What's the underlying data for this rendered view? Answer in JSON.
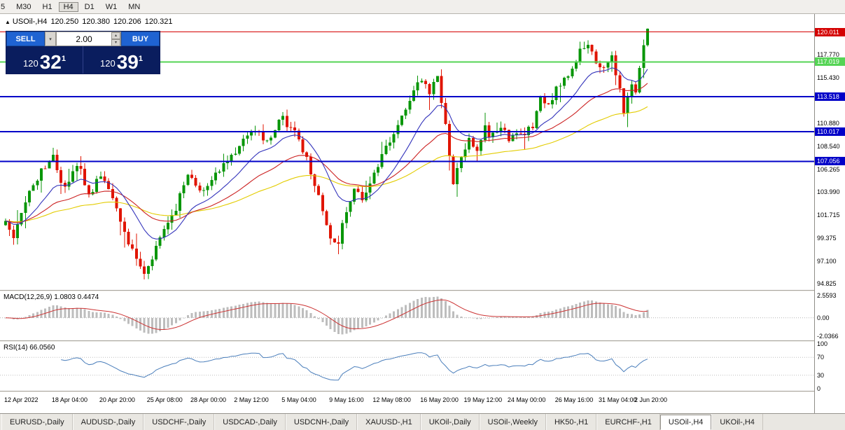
{
  "icons": {
    "one_click_toggle": "▲",
    "dropdown": "▾",
    "step_up": "▴",
    "step_down": "▾"
  },
  "toolbar": {
    "timeframes": [
      {
        "label": "5",
        "active": false
      },
      {
        "label": "M30",
        "active": false
      },
      {
        "label": "H1",
        "active": false
      },
      {
        "label": "H4",
        "active": true
      },
      {
        "label": "D1",
        "active": false
      },
      {
        "label": "W1",
        "active": false
      },
      {
        "label": "MN",
        "active": false
      }
    ]
  },
  "chart": {
    "symbol": "USOil-,H4",
    "open": "120.250",
    "high": "120.380",
    "low": "120.206",
    "close": "120.321"
  },
  "trade_panel": {
    "sell_label": "SELL",
    "buy_label": "BUY",
    "amount": "2.00",
    "sell_price": {
      "base": "120",
      "pips": "32",
      "sup": "1"
    },
    "buy_price": {
      "base": "120",
      "pips": "39",
      "sup": "1"
    }
  },
  "price_axis": {
    "ticks": [
      "117.770",
      "115.430",
      "113.513",
      "110.880",
      "108.540",
      "106.265",
      "103.990",
      "101.715",
      "99.375",
      "97.100",
      "94.825"
    ]
  },
  "hlines": [
    {
      "value": 120.011,
      "label": "120.011",
      "color": "#d40000",
      "badge_bg": "#d40000",
      "badge_fg": "#ffffff",
      "width": 1
    },
    {
      "value": 117.019,
      "label": "117.019",
      "color": "#55d455",
      "badge_bg": "#55d455",
      "badge_fg": "#ffffff",
      "width": 2
    },
    {
      "value": 113.518,
      "label": "113.518",
      "color": "#0000c8",
      "badge_bg": "#0000c8",
      "badge_fg": "#ffffff",
      "width": 2
    },
    {
      "value": 110.017,
      "label": "110.017",
      "color": "#0000c8",
      "badge_bg": "#0000c8",
      "badge_fg": "#ffffff",
      "width": 2
    },
    {
      "value": 107.056,
      "label": "107.056",
      "color": "#0000c8",
      "badge_bg": "#0000c8",
      "badge_fg": "#ffffff",
      "width": 2
    }
  ],
  "macd": {
    "label": "MACD(12,26,9) 1.0803 0.4474",
    "ticks": [
      {
        "v": 2.5593,
        "t": "2.5593"
      },
      {
        "v": 0,
        "t": "0.00"
      },
      {
        "v": -2.0366,
        "t": "-2.0366"
      }
    ]
  },
  "rsi": {
    "label": "RSI(14) 66.0560",
    "ticks": [
      {
        "v": 100,
        "t": "100"
      },
      {
        "v": 70,
        "t": "70"
      },
      {
        "v": 30,
        "t": "30"
      },
      {
        "v": 0,
        "t": "0"
      }
    ]
  },
  "x_axis": {
    "labels": [
      {
        "i": 0,
        "t": "12 Apr 2022"
      },
      {
        "i": 12,
        "t": "18 Apr 04:00"
      },
      {
        "i": 24,
        "t": "20 Apr 20:00"
      },
      {
        "i": 36,
        "t": "25 Apr 08:00"
      },
      {
        "i": 47,
        "t": "28 Apr 00:00"
      },
      {
        "i": 58,
        "t": "2 May 12:00"
      },
      {
        "i": 70,
        "t": "5 May 04:00"
      },
      {
        "i": 82,
        "t": "9 May 16:00"
      },
      {
        "i": 93,
        "t": "12 May 08:00"
      },
      {
        "i": 105,
        "t": "16 May 20:00"
      },
      {
        "i": 116,
        "t": "19 May 12:00"
      },
      {
        "i": 127,
        "t": "24 May 00:00"
      },
      {
        "i": 139,
        "t": "26 May 16:00"
      },
      {
        "i": 150,
        "t": "31 May 04:00"
      },
      {
        "i": 159,
        "t": "2 Jun 20:00"
      }
    ]
  },
  "bottom_tabs": [
    {
      "label": "EURUSD-,Daily",
      "active": false
    },
    {
      "label": "AUDUSD-,Daily",
      "active": false
    },
    {
      "label": "USDCHF-,Daily",
      "active": false
    },
    {
      "label": "USDCAD-,Daily",
      "active": false
    },
    {
      "label": "USDCNH-,Daily",
      "active": false
    },
    {
      "label": "XAUUSD-,H1",
      "active": false
    },
    {
      "label": "UKOil-,Daily",
      "active": false
    },
    {
      "label": "USOil-,Weekly",
      "active": false
    },
    {
      "label": "HK50-,H1",
      "active": false
    },
    {
      "label": "EURCHF-,H1",
      "active": false
    },
    {
      "label": "USOil-,H4",
      "active": true
    },
    {
      "label": "UKOil-,H4",
      "active": false
    }
  ],
  "chart_data": {
    "type": "candlestick",
    "symbol": "USOil-",
    "timeframe": "H4",
    "current_ohlc": {
      "open": 120.25,
      "high": 120.38,
      "low": 120.206,
      "close": 120.321
    },
    "n_candles": 163,
    "price_range": [
      94.2,
      121.8
    ],
    "horizontal_levels": [
      120.011,
      117.019,
      113.518,
      110.017,
      107.056
    ],
    "waypoints": [
      [
        0,
        101.0
      ],
      [
        2,
        99.2
      ],
      [
        5,
        103.0
      ],
      [
        9,
        106.2
      ],
      [
        12,
        107.3
      ],
      [
        15,
        104.3
      ],
      [
        18,
        107.0
      ],
      [
        21,
        103.8
      ],
      [
        24,
        105.6
      ],
      [
        27,
        103.0
      ],
      [
        30,
        100.2
      ],
      [
        33,
        97.2
      ],
      [
        35,
        95.6
      ],
      [
        37,
        97.6
      ],
      [
        40,
        100.6
      ],
      [
        43,
        102.4
      ],
      [
        46,
        105.6
      ],
      [
        49,
        103.9
      ],
      [
        52,
        105.2
      ],
      [
        55,
        106.6
      ],
      [
        58,
        108.2
      ],
      [
        62,
        110.2
      ],
      [
        66,
        109.2
      ],
      [
        70,
        111.3
      ],
      [
        73,
        110.2
      ],
      [
        76,
        107.2
      ],
      [
        79,
        103.6
      ],
      [
        82,
        99.6
      ],
      [
        84,
        98.8
      ],
      [
        86,
        102.2
      ],
      [
        88,
        104.6
      ],
      [
        90,
        103.2
      ],
      [
        93,
        106.2
      ],
      [
        96,
        108.2
      ],
      [
        99,
        110.6
      ],
      [
        102,
        113.2
      ],
      [
        105,
        115.2
      ],
      [
        107,
        113.6
      ],
      [
        109,
        115.6
      ],
      [
        111,
        110.8
      ],
      [
        113,
        104.6
      ],
      [
        115,
        107.6
      ],
      [
        117,
        109.2
      ],
      [
        119,
        108.2
      ],
      [
        121,
        110.2
      ],
      [
        123,
        109.6
      ],
      [
        125,
        110.6
      ],
      [
        127,
        109.2
      ],
      [
        129,
        110.2
      ],
      [
        131,
        109.6
      ],
      [
        133,
        110.8
      ],
      [
        135,
        113.6
      ],
      [
        137,
        112.6
      ],
      [
        139,
        114.6
      ],
      [
        141,
        115.2
      ],
      [
        143,
        116.6
      ],
      [
        145,
        117.9
      ],
      [
        147,
        119.1
      ],
      [
        149,
        117.2
      ],
      [
        151,
        116.1
      ],
      [
        153,
        117.6
      ],
      [
        155,
        114.1
      ],
      [
        156,
        112.2
      ],
      [
        157,
        113.6
      ],
      [
        158,
        115.1
      ],
      [
        159,
        114.2
      ],
      [
        160,
        116.2
      ],
      [
        161,
        118.6
      ],
      [
        162,
        120.321
      ]
    ],
    "colors": {
      "up": "#089608",
      "down": "#e01400",
      "ma_fast": "#3333bb",
      "ma_mid": "#cc2222",
      "ma_slow": "#e3cc00",
      "macd_hist": "#bdbdbd",
      "macd_signal": "#cc3333",
      "rsi_line": "#4a7ebb"
    },
    "indicators": {
      "macd": {
        "params": "12,26,9",
        "values_displayed": "1.0803 0.4474",
        "axis": [
          2.5593,
          0,
          -2.0366
        ]
      },
      "rsi": {
        "params": "14",
        "value_displayed": "66.0560",
        "levels": [
          70,
          30
        ],
        "axis": [
          100,
          70,
          30,
          0
        ]
      }
    }
  }
}
